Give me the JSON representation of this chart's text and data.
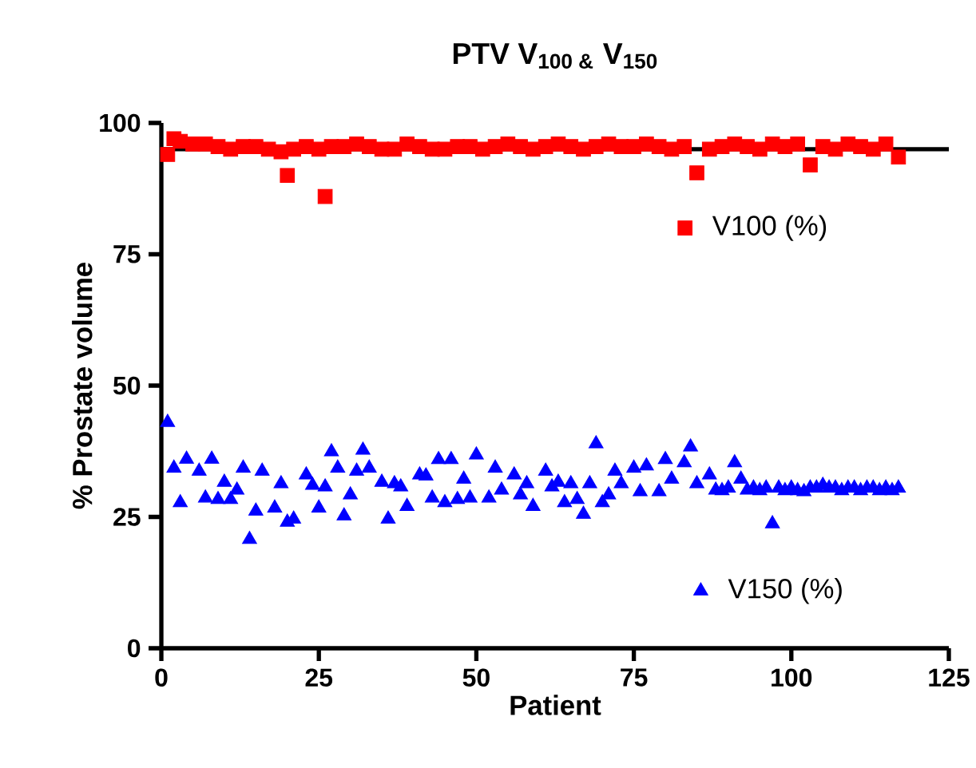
{
  "chart_data": {
    "type": "scatter",
    "title": "PTV V$_{100 &}$ V$_{150}$",
    "xlabel": "Patient",
    "ylabel": "% Prostate volume",
    "xlim": [
      0,
      125
    ],
    "xticks": [
      0,
      25,
      50,
      75,
      100,
      125
    ],
    "ylim": [
      0,
      100
    ],
    "yticks": [
      0,
      25,
      50,
      75,
      100
    ],
    "grid": false,
    "legend": "right",
    "ref_lines": [
      {
        "axis": "y",
        "value": 95,
        "color": "#000000"
      }
    ],
    "series": [
      {
        "name": "V100 (%)",
        "color": "#ff0000",
        "marker": "square",
        "x": [
          1,
          2,
          3,
          5,
          7,
          9,
          11,
          13,
          15,
          17,
          19,
          20,
          21,
          23,
          25,
          26,
          27,
          29,
          31,
          33,
          35,
          37,
          39,
          41,
          43,
          45,
          47,
          49,
          51,
          53,
          55,
          57,
          59,
          61,
          63,
          65,
          67,
          69,
          71,
          73,
          75,
          77,
          79,
          81,
          83,
          85,
          87,
          89,
          91,
          93,
          95,
          97,
          99,
          101,
          103,
          105,
          107,
          109,
          111,
          113,
          115,
          117
        ],
        "values": [
          94,
          97,
          96.5,
          96,
          96,
          95.5,
          95,
          95.5,
          95.5,
          95,
          94.5,
          90,
          95,
          95.5,
          95,
          86,
          95.5,
          95.5,
          96,
          95.5,
          95,
          95,
          96,
          95.5,
          95,
          95,
          95.5,
          95.5,
          95,
          95.5,
          96,
          95.5,
          95,
          95.5,
          96,
          95.5,
          95,
          95.5,
          96,
          95.5,
          95.5,
          96,
          95.5,
          95,
          95.5,
          90.5,
          95,
          95.5,
          96,
          95.5,
          95,
          96,
          95.5,
          96,
          92,
          95.5,
          95,
          96,
          95.5,
          95,
          96,
          93.5
        ]
      },
      {
        "name": "V150 (%)",
        "color": "#0000ff",
        "marker": "triangle",
        "x": [
          1,
          2,
          3,
          4,
          6,
          7,
          8,
          9,
          10,
          11,
          12,
          13,
          14,
          15,
          16,
          18,
          19,
          20,
          21,
          23,
          24,
          25,
          26,
          27,
          28,
          29,
          30,
          31,
          32,
          33,
          35,
          36,
          37,
          38,
          39,
          41,
          42,
          43,
          44,
          45,
          46,
          47,
          48,
          49,
          50,
          52,
          53,
          54,
          56,
          57,
          58,
          59,
          61,
          62,
          63,
          64,
          65,
          66,
          67,
          68,
          69,
          70,
          71,
          72,
          73,
          75,
          76,
          77,
          79,
          80,
          81,
          83,
          84,
          85,
          87,
          88,
          89,
          90,
          91,
          92,
          93,
          94,
          95,
          96,
          97,
          98,
          99,
          100,
          101,
          102,
          103,
          104,
          105,
          106,
          107,
          108,
          109,
          110,
          111,
          112,
          113,
          114,
          115,
          116,
          117
        ],
        "values": [
          43,
          34.3,
          27.7,
          36,
          33.7,
          28.6,
          36,
          28.3,
          31.6,
          28.3,
          30.1,
          34.3,
          20.7,
          26.1,
          33.7,
          26.7,
          31.3,
          24,
          24.6,
          33,
          31,
          26.7,
          30.7,
          37.4,
          34.3,
          25.2,
          29.2,
          33.7,
          37.7,
          34.3,
          31.6,
          24.6,
          31.3,
          30.7,
          27,
          33,
          32.8,
          28.6,
          35.9,
          27.7,
          35.9,
          28.3,
          32.2,
          28.6,
          36.8,
          28.6,
          34.3,
          30.1,
          33,
          29.2,
          31.3,
          27,
          33.7,
          30.7,
          31.6,
          27.7,
          31.3,
          28.3,
          25.5,
          31.3,
          38.9,
          27.7,
          29.2,
          33.7,
          31.3,
          34.3,
          29.8,
          34.7,
          29.8,
          35.9,
          32.2,
          35.3,
          38.3,
          31.3,
          33,
          30.1,
          30,
          30.5,
          35.3,
          32.2,
          30.1,
          30.5,
          30,
          30.5,
          23.7,
          30.5,
          30,
          30.5,
          30,
          29.8,
          30.5,
          30.5,
          31,
          30.5,
          30.5,
          30,
          30.5,
          30.5,
          30,
          30.5,
          30.5,
          30,
          30.5,
          30,
          30.5
        ]
      }
    ]
  }
}
